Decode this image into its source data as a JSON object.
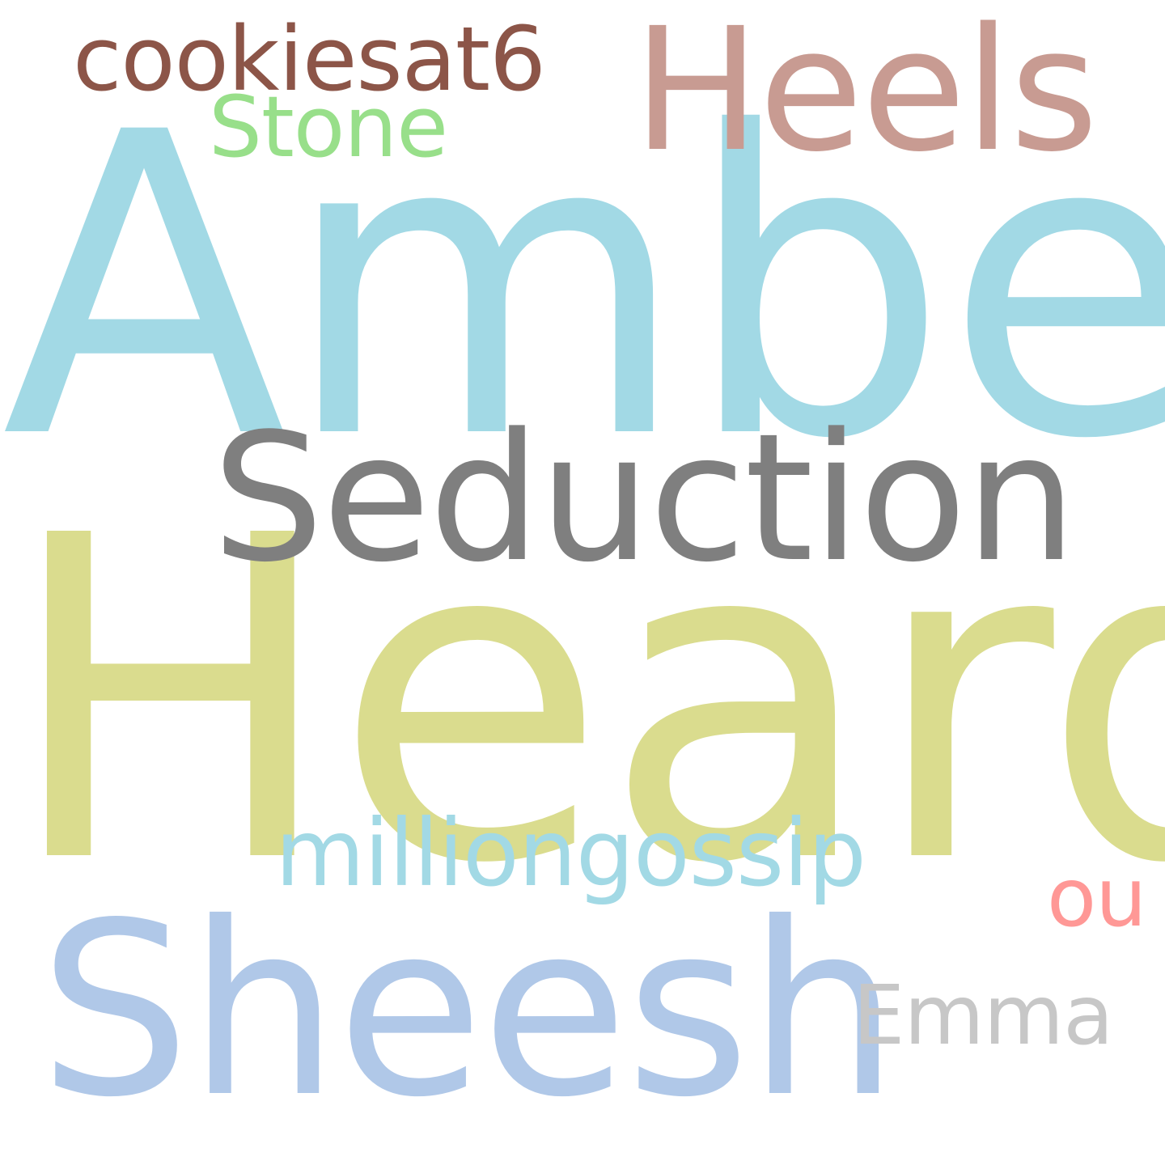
{
  "words": {
    "amber": {
      "text": "Amber",
      "color": "#a2d9e5"
    },
    "heard": {
      "text": "Heard",
      "color": "#dadc8e"
    },
    "sheesh": {
      "text": "Sheesh",
      "color": "#b0c8e8"
    },
    "seduction": {
      "text": "Seduction",
      "color": "#7f7f7f"
    },
    "heels": {
      "text": "Heels",
      "color": "#c89b92"
    },
    "cookiesat6": {
      "text": "cookiesat6",
      "color": "#8c5548"
    },
    "stone": {
      "text": "Stone",
      "color": "#98df8a"
    },
    "milliongossip": {
      "text": "milliongossip",
      "color": "#a2d9e5"
    },
    "emma": {
      "text": "Emma",
      "color": "#c7c7c7"
    },
    "ou": {
      "text": "ou",
      "color": "#ff9896"
    }
  }
}
